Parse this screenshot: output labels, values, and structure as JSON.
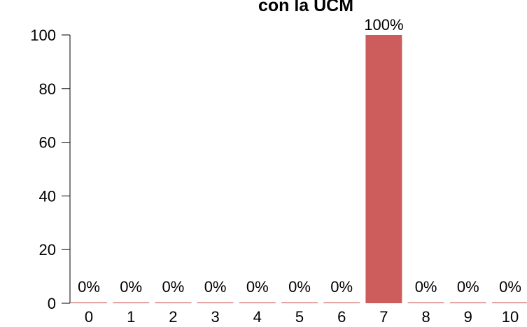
{
  "chart_data": {
    "type": "bar",
    "title": "con la UCM",
    "categories": [
      "0",
      "1",
      "2",
      "3",
      "4",
      "5",
      "6",
      "7",
      "8",
      "9",
      "10"
    ],
    "values": [
      0,
      0,
      0,
      0,
      0,
      0,
      0,
      100,
      0,
      0,
      0
    ],
    "data_labels": [
      "0%",
      "0%",
      "0%",
      "0%",
      "0%",
      "0%",
      "0%",
      "100%",
      "0%",
      "0%",
      "0%"
    ],
    "yticks": [
      0,
      20,
      40,
      60,
      80,
      100
    ],
    "ylim": [
      0,
      100
    ],
    "xlabel": "",
    "ylabel": "",
    "bar_color": "#cd5c5c",
    "grid": false,
    "legend": "none"
  }
}
